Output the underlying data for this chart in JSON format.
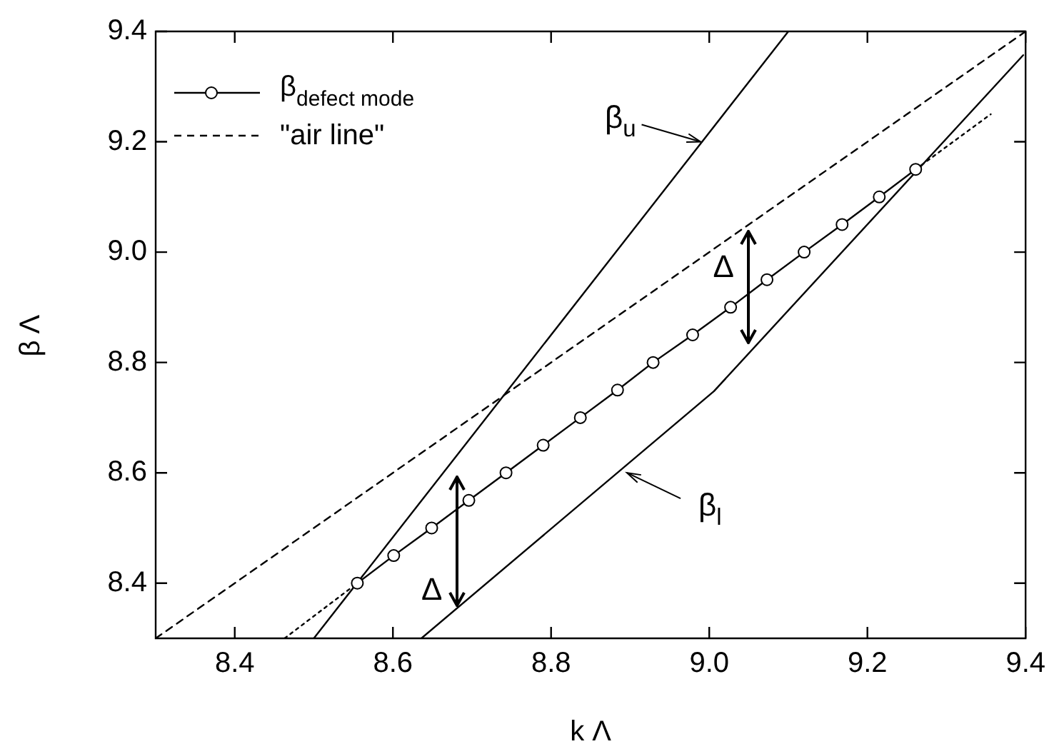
{
  "chart_data": {
    "type": "line",
    "xlabel": "k Λ",
    "ylabel": "β Λ",
    "xlim": [
      8.3,
      9.4
    ],
    "ylim": [
      8.3,
      9.4
    ],
    "xticks": [
      8.4,
      8.6,
      8.8,
      {
        "value": 9,
        "label": "9.0"
      },
      9.2,
      9.4
    ],
    "yticks": [
      8.4,
      8.6,
      8.8,
      {
        "value": 9,
        "label": "9.0"
      },
      9.2,
      9.4
    ],
    "legend": "top left",
    "series": [
      {
        "name": "β$_{defect mode}$",
        "color": "#000000",
        "marker": "circle",
        "line_style": "solid",
        "x": [
          8.555,
          8.601,
          8.649,
          8.696,
          8.743,
          8.79,
          8.837,
          8.884,
          8.929,
          8.979,
          9.027,
          9.073,
          9.12,
          9.168,
          9.215,
          9.261
        ],
        "values": [
          8.4,
          8.45,
          8.5,
          8.55,
          8.6,
          8.65,
          8.7,
          8.75,
          8.8,
          8.85,
          8.9,
          8.95,
          9.0,
          9.05,
          9.1,
          9.15
        ]
      },
      {
        "name": "\"air line\"",
        "color": "#000000",
        "marker": "none",
        "line_style": "dashed",
        "x": [
          8.3,
          9.4
        ],
        "values": [
          8.3,
          9.4
        ]
      },
      {
        "color": "#000000",
        "marker": "none",
        "line_style": "solid",
        "x": [
          8.5,
          9.1
        ],
        "values": [
          8.3,
          9.4
        ]
      },
      {
        "color": "#000000",
        "marker": "none",
        "line_style": "solid",
        "x": [
          8.636,
          9.006,
          9.397
        ],
        "values": [
          8.3,
          8.748,
          9.357
        ]
      },
      {
        "color": "#000000",
        "marker": "none",
        "line_style": "dotted",
        "x": [
          8.463,
          8.555
        ],
        "values": [
          8.3,
          8.4
        ]
      },
      {
        "color": "#000000",
        "marker": "none",
        "line_style": "dotted",
        "x": [
          9.261,
          9.356
        ],
        "values": [
          9.15,
          9.25
        ]
      }
    ],
    "annotations": [
      {
        "text": "β$_{u}$",
        "x": 8.989,
        "y": 9.2
      },
      {
        "text": "β$_{l}$",
        "x": 8.896,
        "y": 8.6
      },
      "Δ",
      {
        "text": "Δ",
        "x": 9.05,
        "y": 9.04
      }
    ]
  }
}
